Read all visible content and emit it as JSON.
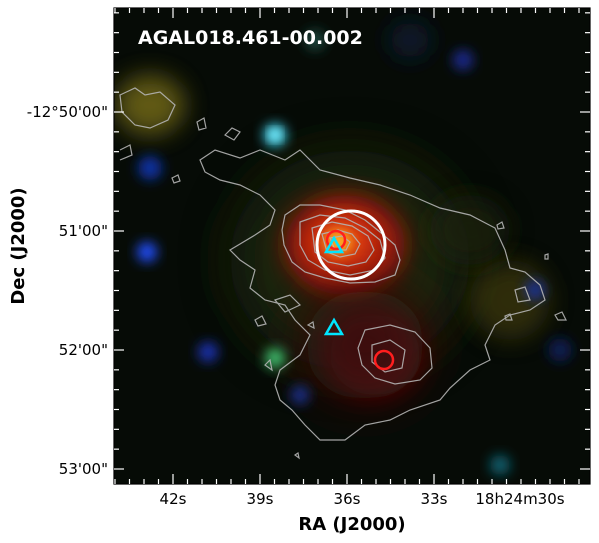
{
  "figure": {
    "title": "AGAL018.461-00.002",
    "xlabel": "RA (J2000)",
    "ylabel": "Dec (J2000)",
    "x_ticks": [
      "42s",
      "39s",
      "36s",
      "33s",
      "18h24m30s"
    ],
    "y_ticks": [
      "-12°50'00\"",
      "51'00\"",
      "52'00\"",
      "53'00\""
    ],
    "colors": {
      "contour": "#b4b4b4",
      "circle_large": "#ffffff",
      "circle_small": "#ff1e1e",
      "triangle": "#00e6ff",
      "background": "#050a05"
    },
    "markers": {
      "large_circle_count": 1,
      "small_red_circle_count": 2,
      "cyan_triangle_count": 2
    }
  }
}
